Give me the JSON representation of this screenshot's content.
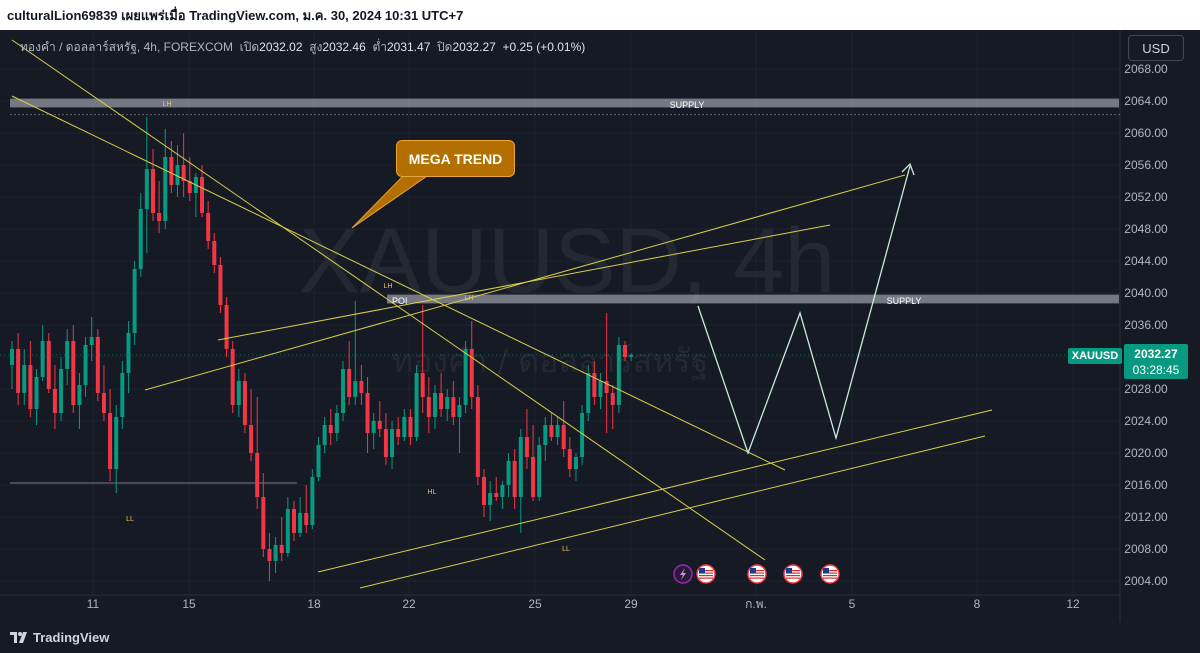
{
  "header": {
    "title": "culturalLion69839 เผยแพร่เมื่อ TradingView.com, ม.ค. 30, 2024 10:31 UTC+7"
  },
  "legend": {
    "symbol": "ทองคำ / ดอลลาร์สหรัฐ, 4h, FOREXCOM",
    "open_label": "เปิด",
    "open": "2032.02",
    "high_label": "สูง",
    "high": "2032.46",
    "low_label": "ต่ำ",
    "low": "2031.47",
    "close_label": "ปิด",
    "close": "2032.27",
    "change": "+0.25 (+0.01%)"
  },
  "currency": "USD",
  "watermark": {
    "symbol": "XAUUSD, 4h",
    "name": "ทองคำ / ดอลลาร์สหรัฐ"
  },
  "price_tag": {
    "symbol": "XAUUSD",
    "price": "2032.27",
    "countdown": "03:28:45"
  },
  "callout": "MEGA TREND",
  "annotations": {
    "supply_top": "SUPPLY",
    "supply_mid": "SUPPLY",
    "poi": "POI",
    "lh1": "LH",
    "lh2": "LH",
    "lh3": "LH",
    "ll1": "LL",
    "ll2": "LL",
    "hl": "HL"
  },
  "footer": {
    "brand": "TradingView"
  },
  "colors": {
    "up": "#089981",
    "down": "#f23645",
    "trendline": "#d9cf4a",
    "projection": "#c9ecd8",
    "zone": "#9598a1"
  },
  "chart_data": {
    "type": "candlestick",
    "timeframe": "4h",
    "ylim": [
      2002,
      2071
    ],
    "y_ticks": [
      "2068.00",
      "2064.00",
      "2060.00",
      "2056.00",
      "2052.00",
      "2048.00",
      "2044.00",
      "2040.00",
      "2036.00",
      "2032.00",
      "2028.00",
      "2024.00",
      "2020.00",
      "2016.00",
      "2012.00",
      "2008.00",
      "2004.00"
    ],
    "x_ticks": [
      "11",
      "15",
      "18",
      "22",
      "25",
      "29",
      "ก.พ.",
      "5",
      "8",
      "12"
    ],
    "zones": [
      {
        "label": "SUPPLY",
        "low": 2063.2,
        "high": 2064.3
      },
      {
        "label": "SUPPLY",
        "low": 2038.7,
        "high": 2039.8
      }
    ],
    "last_price": 2032.27,
    "candles": [
      {
        "o": 2031.0,
        "h": 2034.0,
        "l": 2028.0,
        "c": 2033.0
      },
      {
        "o": 2033.0,
        "h": 2035.0,
        "l": 2026.0,
        "c": 2027.5
      },
      {
        "o": 2027.5,
        "h": 2033.0,
        "l": 2026.0,
        "c": 2031.0
      },
      {
        "o": 2031.0,
        "h": 2034.0,
        "l": 2024.5,
        "c": 2025.5
      },
      {
        "o": 2025.5,
        "h": 2030.5,
        "l": 2023.5,
        "c": 2029.5
      },
      {
        "o": 2029.5,
        "h": 2036.0,
        "l": 2029.0,
        "c": 2034.0
      },
      {
        "o": 2034.0,
        "h": 2035.0,
        "l": 2027.5,
        "c": 2028.0
      },
      {
        "o": 2028.0,
        "h": 2031.0,
        "l": 2023.0,
        "c": 2025.0
      },
      {
        "o": 2025.0,
        "h": 2032.0,
        "l": 2024.0,
        "c": 2030.5
      },
      {
        "o": 2030.5,
        "h": 2035.5,
        "l": 2028.5,
        "c": 2034.0
      },
      {
        "o": 2034.0,
        "h": 2036.0,
        "l": 2025.0,
        "c": 2026.0
      },
      {
        "o": 2026.0,
        "h": 2030.0,
        "l": 2023.0,
        "c": 2028.5
      },
      {
        "o": 2028.5,
        "h": 2034.5,
        "l": 2027.0,
        "c": 2033.5
      },
      {
        "o": 2033.5,
        "h": 2037.0,
        "l": 2031.5,
        "c": 2034.5
      },
      {
        "o": 2034.5,
        "h": 2035.5,
        "l": 2026.5,
        "c": 2027.5
      },
      {
        "o": 2027.5,
        "h": 2031.0,
        "l": 2024.0,
        "c": 2025.0
      },
      {
        "o": 2025.0,
        "h": 2028.0,
        "l": 2016.5,
        "c": 2018.0
      },
      {
        "o": 2018.0,
        "h": 2026.0,
        "l": 2015.0,
        "c": 2024.5
      },
      {
        "o": 2024.5,
        "h": 2031.5,
        "l": 2023.0,
        "c": 2030.0
      },
      {
        "o": 2030.0,
        "h": 2036.5,
        "l": 2027.5,
        "c": 2035.0
      },
      {
        "o": 2035.0,
        "h": 2044.0,
        "l": 2033.5,
        "c": 2043.0
      },
      {
        "o": 2043.0,
        "h": 2052.5,
        "l": 2042.0,
        "c": 2050.5
      },
      {
        "o": 2050.5,
        "h": 2062.0,
        "l": 2045.0,
        "c": 2055.5
      },
      {
        "o": 2055.5,
        "h": 2058.0,
        "l": 2049.0,
        "c": 2050.0
      },
      {
        "o": 2050.0,
        "h": 2054.0,
        "l": 2047.5,
        "c": 2049.0
      },
      {
        "o": 2049.0,
        "h": 2060.5,
        "l": 2048.0,
        "c": 2057.0
      },
      {
        "o": 2057.0,
        "h": 2059.0,
        "l": 2052.5,
        "c": 2053.5
      },
      {
        "o": 2053.5,
        "h": 2058.5,
        "l": 2052.0,
        "c": 2056.0
      },
      {
        "o": 2056.0,
        "h": 2060.0,
        "l": 2052.0,
        "c": 2054.0
      },
      {
        "o": 2054.0,
        "h": 2057.0,
        "l": 2051.5,
        "c": 2052.5
      },
      {
        "o": 2052.5,
        "h": 2055.0,
        "l": 2049.5,
        "c": 2054.5
      },
      {
        "o": 2054.5,
        "h": 2056.0,
        "l": 2049.5,
        "c": 2050.0
      },
      {
        "o": 2050.0,
        "h": 2051.5,
        "l": 2045.5,
        "c": 2046.5
      },
      {
        "o": 2046.5,
        "h": 2047.5,
        "l": 2042.5,
        "c": 2043.5
      },
      {
        "o": 2043.5,
        "h": 2044.5,
        "l": 2037.5,
        "c": 2038.5
      },
      {
        "o": 2038.5,
        "h": 2039.5,
        "l": 2032.0,
        "c": 2033.0
      },
      {
        "o": 2033.0,
        "h": 2034.0,
        "l": 2025.0,
        "c": 2026.0
      },
      {
        "o": 2026.0,
        "h": 2030.5,
        "l": 2024.5,
        "c": 2029.0
      },
      {
        "o": 2029.0,
        "h": 2030.0,
        "l": 2022.5,
        "c": 2023.5
      },
      {
        "o": 2023.5,
        "h": 2028.0,
        "l": 2019.0,
        "c": 2020.0
      },
      {
        "o": 2020.0,
        "h": 2027.0,
        "l": 2013.0,
        "c": 2014.5
      },
      {
        "o": 2014.5,
        "h": 2017.5,
        "l": 2007.0,
        "c": 2008.0
      },
      {
        "o": 2008.0,
        "h": 2010.0,
        "l": 2004.0,
        "c": 2006.5
      },
      {
        "o": 2006.5,
        "h": 2009.5,
        "l": 2005.0,
        "c": 2008.5
      },
      {
        "o": 2008.5,
        "h": 2012.0,
        "l": 2006.5,
        "c": 2007.5
      },
      {
        "o": 2007.5,
        "h": 2014.5,
        "l": 2007.0,
        "c": 2013.0
      },
      {
        "o": 2013.0,
        "h": 2014.0,
        "l": 2009.0,
        "c": 2010.0
      },
      {
        "o": 2010.0,
        "h": 2014.5,
        "l": 2009.5,
        "c": 2012.5
      },
      {
        "o": 2012.5,
        "h": 2016.0,
        "l": 2010.0,
        "c": 2011.0
      },
      {
        "o": 2011.0,
        "h": 2018.0,
        "l": 2010.5,
        "c": 2017.0
      },
      {
        "o": 2017.0,
        "h": 2022.0,
        "l": 2016.5,
        "c": 2021.0
      },
      {
        "o": 2021.0,
        "h": 2024.5,
        "l": 2020.0,
        "c": 2023.5
      },
      {
        "o": 2023.5,
        "h": 2025.5,
        "l": 2021.0,
        "c": 2022.5
      },
      {
        "o": 2022.5,
        "h": 2026.0,
        "l": 2021.5,
        "c": 2025.0
      },
      {
        "o": 2025.0,
        "h": 2031.5,
        "l": 2024.0,
        "c": 2030.5
      },
      {
        "o": 2030.5,
        "h": 2034.0,
        "l": 2026.0,
        "c": 2027.0
      },
      {
        "o": 2027.0,
        "h": 2039.0,
        "l": 2026.0,
        "c": 2029.0
      },
      {
        "o": 2029.0,
        "h": 2031.0,
        "l": 2026.0,
        "c": 2027.5
      },
      {
        "o": 2027.5,
        "h": 2029.5,
        "l": 2020.0,
        "c": 2022.5
      },
      {
        "o": 2022.5,
        "h": 2025.0,
        "l": 2020.5,
        "c": 2024.0
      },
      {
        "o": 2024.0,
        "h": 2026.5,
        "l": 2022.0,
        "c": 2023.0
      },
      {
        "o": 2023.0,
        "h": 2025.0,
        "l": 2018.5,
        "c": 2019.5
      },
      {
        "o": 2019.5,
        "h": 2024.0,
        "l": 2018.0,
        "c": 2023.0
      },
      {
        "o": 2023.0,
        "h": 2024.5,
        "l": 2021.0,
        "c": 2022.0
      },
      {
        "o": 2022.0,
        "h": 2025.5,
        "l": 2021.5,
        "c": 2024.5
      },
      {
        "o": 2024.5,
        "h": 2025.5,
        "l": 2021.0,
        "c": 2022.0
      },
      {
        "o": 2022.0,
        "h": 2031.0,
        "l": 2021.5,
        "c": 2030.0
      },
      {
        "o": 2030.0,
        "h": 2038.5,
        "l": 2025.0,
        "c": 2027.0
      },
      {
        "o": 2027.0,
        "h": 2029.5,
        "l": 2022.5,
        "c": 2024.5
      },
      {
        "o": 2024.5,
        "h": 2028.5,
        "l": 2023.0,
        "c": 2027.5
      },
      {
        "o": 2027.5,
        "h": 2030.0,
        "l": 2024.5,
        "c": 2025.5
      },
      {
        "o": 2025.5,
        "h": 2028.0,
        "l": 2024.0,
        "c": 2027.0
      },
      {
        "o": 2027.0,
        "h": 2029.0,
        "l": 2023.5,
        "c": 2024.5
      },
      {
        "o": 2024.5,
        "h": 2027.0,
        "l": 2020.0,
        "c": 2026.0
      },
      {
        "o": 2026.0,
        "h": 2034.0,
        "l": 2025.0,
        "c": 2033.0
      },
      {
        "o": 2033.0,
        "h": 2036.5,
        "l": 2025.5,
        "c": 2027.0
      },
      {
        "o": 2027.0,
        "h": 2028.5,
        "l": 2016.0,
        "c": 2017.0
      },
      {
        "o": 2017.0,
        "h": 2018.0,
        "l": 2012.0,
        "c": 2013.5
      },
      {
        "o": 2013.5,
        "h": 2016.5,
        "l": 2011.5,
        "c": 2015.0
      },
      {
        "o": 2015.0,
        "h": 2017.0,
        "l": 2014.0,
        "c": 2014.5
      },
      {
        "o": 2014.5,
        "h": 2016.5,
        "l": 2013.0,
        "c": 2016.0
      },
      {
        "o": 2016.0,
        "h": 2020.0,
        "l": 2014.5,
        "c": 2019.0
      },
      {
        "o": 2019.0,
        "h": 2020.5,
        "l": 2013.0,
        "c": 2014.5
      },
      {
        "o": 2014.5,
        "h": 2023.0,
        "l": 2010.0,
        "c": 2022.0
      },
      {
        "o": 2022.0,
        "h": 2025.5,
        "l": 2018.0,
        "c": 2019.5
      },
      {
        "o": 2019.5,
        "h": 2023.5,
        "l": 2014.0,
        "c": 2014.5
      },
      {
        "o": 2014.5,
        "h": 2022.0,
        "l": 2014.0,
        "c": 2021.0
      },
      {
        "o": 2021.0,
        "h": 2024.5,
        "l": 2019.0,
        "c": 2023.5
      },
      {
        "o": 2023.5,
        "h": 2025.0,
        "l": 2021.5,
        "c": 2022.0
      },
      {
        "o": 2022.0,
        "h": 2024.5,
        "l": 2021.0,
        "c": 2023.5
      },
      {
        "o": 2023.5,
        "h": 2026.5,
        "l": 2019.5,
        "c": 2020.5
      },
      {
        "o": 2020.5,
        "h": 2022.0,
        "l": 2017.0,
        "c": 2018.0
      },
      {
        "o": 2018.0,
        "h": 2020.0,
        "l": 2016.5,
        "c": 2019.5
      },
      {
        "o": 2019.5,
        "h": 2026.0,
        "l": 2018.5,
        "c": 2025.0
      },
      {
        "o": 2025.0,
        "h": 2031.0,
        "l": 2024.0,
        "c": 2030.0
      },
      {
        "o": 2030.0,
        "h": 2031.5,
        "l": 2026.0,
        "c": 2027.0
      },
      {
        "o": 2027.0,
        "h": 2030.0,
        "l": 2025.5,
        "c": 2029.0
      },
      {
        "o": 2029.0,
        "h": 2037.5,
        "l": 2022.5,
        "c": 2027.5
      },
      {
        "o": 2027.5,
        "h": 2028.5,
        "l": 2023.0,
        "c": 2026.0
      },
      {
        "o": 2026.0,
        "h": 2034.5,
        "l": 2025.0,
        "c": 2033.5
      },
      {
        "o": 2033.5,
        "h": 2034.0,
        "l": 2031.5,
        "c": 2032.0
      },
      {
        "o": 2032.02,
        "h": 2032.46,
        "l": 2031.47,
        "c": 2032.27
      }
    ],
    "projection_path": [
      2038.0,
      2020.0,
      2038.0,
      2022.0,
      2056.0
    ],
    "events": [
      "lightning",
      "us-flag",
      "us-flag",
      "us-flag",
      "us-flag"
    ]
  }
}
